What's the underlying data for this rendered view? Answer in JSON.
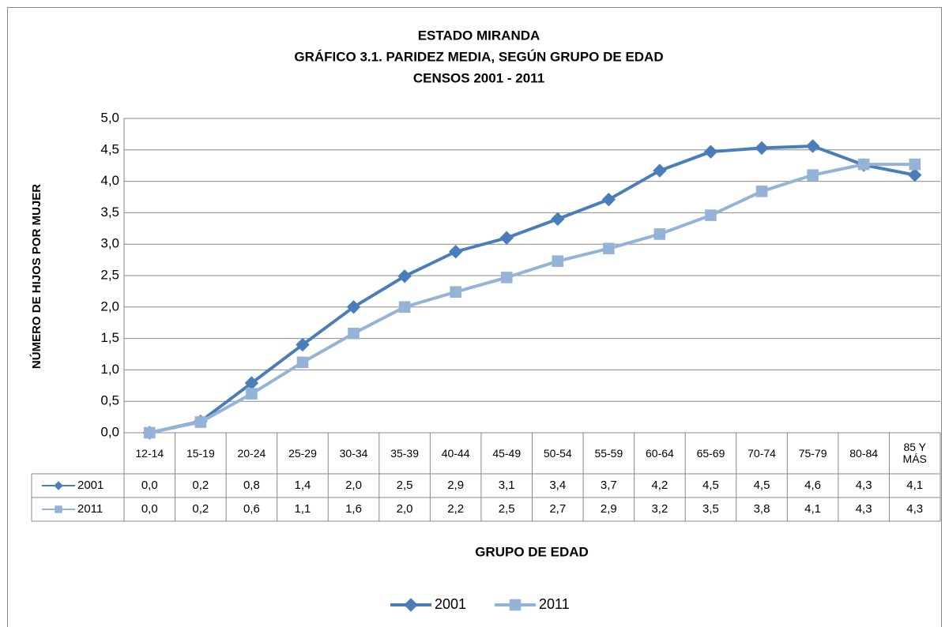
{
  "chart_data": {
    "type": "line",
    "title": [
      "ESTADO MIRANDA",
      "GRÁFICO 3.1. PARIDEZ MEDIA, SEGÚN GRUPO DE EDAD",
      "CENSOS 2001 - 2011"
    ],
    "xlabel": "GRUPO DE EDAD",
    "ylabel": "NÚMERO DE HIJOS POR MUJER",
    "categories": [
      "12-14",
      "15-19",
      "20-24",
      "25-29",
      "30-34",
      "35-39",
      "40-44",
      "45-49",
      "50-54",
      "55-59",
      "60-64",
      "65-69",
      "70-74",
      "75-79",
      "80-84",
      "85 Y MÁS"
    ],
    "series": [
      {
        "name": "2001",
        "color": "#4a7ebb",
        "marker": "diamond",
        "values": [
          0.0,
          0.18,
          0.79,
          1.4,
          2.0,
          2.49,
          2.88,
          3.1,
          3.4,
          3.71,
          4.17,
          4.47,
          4.53,
          4.56,
          4.26,
          4.1
        ],
        "value_labels": [
          "0,0",
          "0,2",
          "0,8",
          "1,4",
          "2,0",
          "2,5",
          "2,9",
          "3,1",
          "3,4",
          "3,7",
          "4,2",
          "4,5",
          "4,5",
          "4,6",
          "4,3",
          "4,1"
        ]
      },
      {
        "name": "2011",
        "color": "#95b3d7",
        "marker": "square",
        "values": [
          0.0,
          0.17,
          0.62,
          1.12,
          1.58,
          2.0,
          2.24,
          2.47,
          2.73,
          2.93,
          3.16,
          3.46,
          3.84,
          4.1,
          4.27,
          4.27
        ],
        "value_labels": [
          "0,0",
          "0,2",
          "0,6",
          "1,1",
          "1,6",
          "2,0",
          "2,2",
          "2,5",
          "2,7",
          "2,9",
          "3,2",
          "3,5",
          "3,8",
          "4,1",
          "4,3",
          "4,3"
        ]
      }
    ],
    "ylim": [
      0,
      5
    ],
    "yticks": [
      {
        "value": 0,
        "label": "0,0"
      },
      {
        "value": 0.5,
        "label": "0,5"
      },
      {
        "value": 1,
        "label": "1,0"
      },
      {
        "value": 1.5,
        "label": "1,5"
      },
      {
        "value": 2,
        "label": "2,0"
      },
      {
        "value": 2.5,
        "label": "2,5"
      },
      {
        "value": 3,
        "label": "3,0"
      },
      {
        "value": 3.5,
        "label": "3,5"
      },
      {
        "value": 4,
        "label": "4,0"
      },
      {
        "value": 4.5,
        "label": "4,5"
      },
      {
        "value": 5,
        "label": "5,0"
      }
    ],
    "grid": true,
    "legend": "bottom"
  }
}
